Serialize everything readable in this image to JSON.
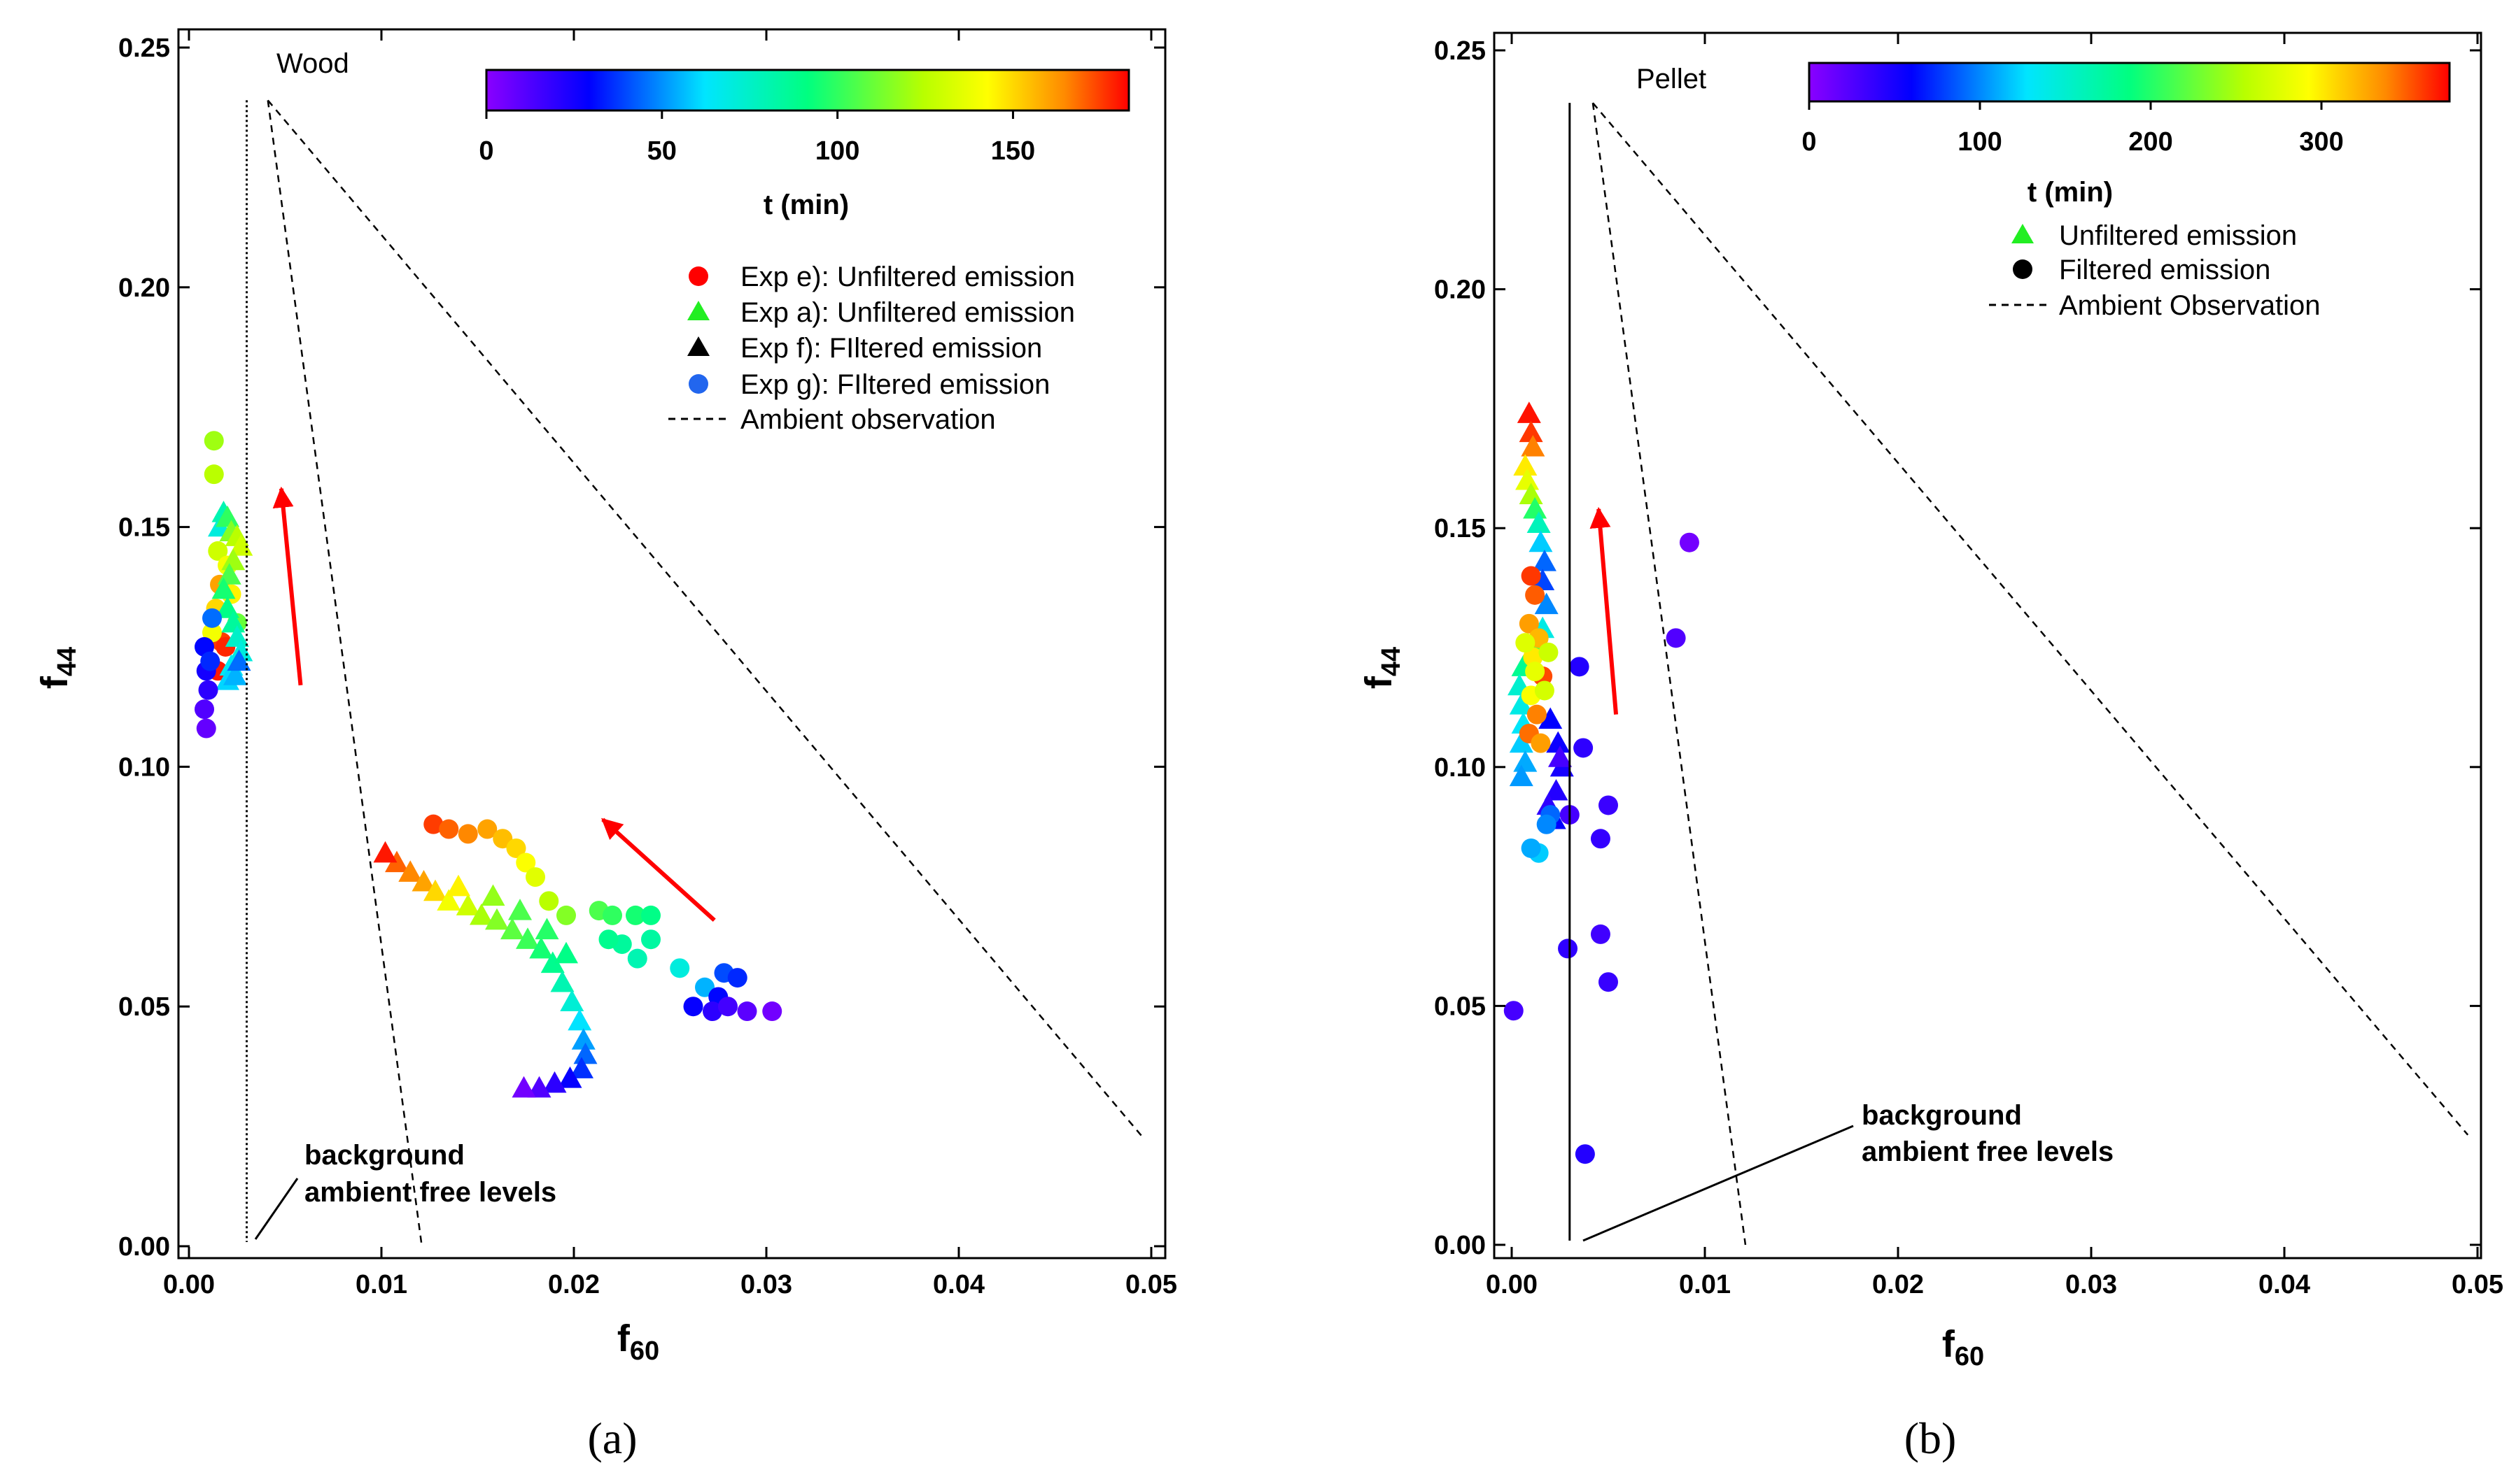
{
  "chart_data": [
    {
      "type": "scatter",
      "panel": "(a)",
      "title": "Wood",
      "xlabel_main": "f",
      "xlabel_sub": "60",
      "ylabel_main": "f",
      "ylabel_sub": "44",
      "xlim": [
        0,
        0.05
      ],
      "ylim": [
        0,
        0.25
      ],
      "xticks": [
        "0.00",
        "0.01",
        "0.02",
        "0.03",
        "0.04",
        "0.05"
      ],
      "yticks": [
        "0.00",
        "0.05",
        "0.10",
        "0.15",
        "0.20",
        "0.25"
      ],
      "colorbar": {
        "label": "t (min)",
        "min": 0,
        "max": 183,
        "ticks": [
          "0",
          "50",
          "100",
          "150"
        ],
        "tick_values": [
          0,
          50,
          100,
          150
        ]
      },
      "legend": [
        {
          "label": "Exp e): Unfiltered emission",
          "marker": "circle",
          "color": "#ff0000"
        },
        {
          "label": "Exp a): Unfiltered emission",
          "marker": "triangle",
          "color": "#22ee22"
        },
        {
          "label": "Exp f): FIltered emission",
          "marker": "triangle",
          "color": "#000000"
        },
        {
          "label": "Exp g): FIltered emission",
          "marker": "circle",
          "color": "#2266ee"
        },
        {
          "label": "Ambient observation",
          "marker": "dashed-line",
          "color": "#000000"
        }
      ],
      "annotation": {
        "line1": "background",
        "line2": "ambient free levels"
      },
      "ambient_lines": [
        [
          [
            0.0041,
            0.239
          ],
          [
            0.0121,
            0.0
          ]
        ],
        [
          [
            0.0041,
            0.239
          ],
          [
            0.0495,
            0.023
          ]
        ]
      ],
      "background_line": {
        "x": 0.003,
        "style": "dotted"
      },
      "arrows": [
        {
          "from": [
            0.0058,
            0.117
          ],
          "to": [
            0.0048,
            0.158
          ]
        },
        {
          "from": [
            0.0273,
            0.068
          ],
          "to": [
            0.0215,
            0.089
          ]
        }
      ],
      "series": [
        {
          "name": "Exp e): Unfiltered emission",
          "marker": "circle",
          "points": [
            [
              0.0013,
              0.168,
              120
            ],
            [
              0.0013,
              0.161,
              125
            ],
            [
              0.0015,
              0.145,
              130
            ],
            [
              0.0016,
              0.138,
              160
            ],
            [
              0.0014,
              0.133,
              150
            ],
            [
              0.0017,
              0.126,
              175
            ],
            [
              0.0019,
              0.125,
              178
            ],
            [
              0.0015,
              0.12,
              180
            ],
            [
              0.002,
              0.142,
              140
            ],
            [
              0.0022,
              0.136,
              145
            ],
            [
              0.0025,
              0.13,
              110
            ],
            [
              0.0012,
              0.128,
              140
            ]
          ]
        },
        {
          "name": "Exp a): Unfiltered emission",
          "marker": "triangle",
          "points": [
            [
              0.0016,
              0.15,
              70
            ],
            [
              0.0018,
              0.153,
              80
            ],
            [
              0.002,
              0.152,
              100
            ],
            [
              0.0022,
              0.149,
              115
            ],
            [
              0.0025,
              0.148,
              125
            ],
            [
              0.0027,
              0.146,
              130
            ],
            [
              0.0023,
              0.143,
              120
            ],
            [
              0.0021,
              0.14,
              105
            ],
            [
              0.0018,
              0.137,
              95
            ],
            [
              0.002,
              0.133,
              90
            ],
            [
              0.0023,
              0.13,
              85
            ],
            [
              0.0025,
              0.127,
              75
            ],
            [
              0.0027,
              0.124,
              70
            ],
            [
              0.0022,
              0.121,
              65
            ],
            [
              0.002,
              0.118,
              60
            ],
            [
              0.0024,
              0.119,
              55
            ],
            [
              0.0026,
              0.122,
              45
            ]
          ]
        },
        {
          "name": "Exp f): FIltered emission",
          "marker": "triangle",
          "points": [
            [
              0.0108,
              0.08,
              170
            ],
            [
              0.0115,
              0.078,
              165
            ],
            [
              0.0122,
              0.076,
              160
            ],
            [
              0.0128,
              0.074,
              150
            ],
            [
              0.0135,
              0.072,
              140
            ],
            [
              0.0145,
              0.071,
              130
            ],
            [
              0.0152,
              0.069,
              122
            ],
            [
              0.016,
              0.068,
              115
            ],
            [
              0.0168,
              0.066,
              108
            ],
            [
              0.0176,
              0.064,
              102
            ],
            [
              0.0183,
              0.062,
              95
            ],
            [
              0.0189,
              0.059,
              88
            ],
            [
              0.0194,
              0.055,
              80
            ],
            [
              0.0199,
              0.051,
              72
            ],
            [
              0.0203,
              0.047,
              62
            ],
            [
              0.0205,
              0.043,
              52
            ],
            [
              0.0206,
              0.04,
              44
            ],
            [
              0.0204,
              0.037,
              36
            ],
            [
              0.0198,
              0.035,
              28
            ],
            [
              0.019,
              0.034,
              20
            ],
            [
              0.0182,
              0.033,
              12
            ],
            [
              0.0174,
              0.033,
              5
            ],
            [
              0.0102,
              0.082,
              180
            ],
            [
              0.014,
              0.075,
              145
            ],
            [
              0.0158,
              0.073,
              118
            ],
            [
              0.0172,
              0.07,
              105
            ],
            [
              0.0186,
              0.066,
              98
            ],
            [
              0.0196,
              0.061,
              90
            ]
          ]
        },
        {
          "name": "Exp g): FIltered emission",
          "marker": "circle",
          "points": [
            [
              0.0127,
              0.088,
              175
            ],
            [
              0.0135,
              0.087,
              170
            ],
            [
              0.0145,
              0.086,
              165
            ],
            [
              0.0155,
              0.087,
              160
            ],
            [
              0.0163,
              0.085,
              155
            ],
            [
              0.017,
              0.083,
              150
            ],
            [
              0.0175,
              0.08,
              142
            ],
            [
              0.018,
              0.077,
              135
            ],
            [
              0.0187,
              0.072,
              125
            ],
            [
              0.0196,
              0.069,
              115
            ],
            [
              0.0213,
              0.07,
              105
            ],
            [
              0.022,
              0.069,
              100
            ],
            [
              0.0232,
              0.069,
              95
            ],
            [
              0.024,
              0.069,
              90
            ],
            [
              0.0225,
              0.063,
              85
            ],
            [
              0.0233,
              0.06,
              80
            ],
            [
              0.0218,
              0.064,
              88
            ],
            [
              0.024,
              0.064,
              84
            ],
            [
              0.0255,
              0.058,
              70
            ],
            [
              0.0268,
              0.054,
              55
            ],
            [
              0.0278,
              0.057,
              40
            ],
            [
              0.0285,
              0.056,
              35
            ],
            [
              0.0275,
              0.052,
              30
            ],
            [
              0.0262,
              0.05,
              28
            ],
            [
              0.0272,
              0.049,
              20
            ],
            [
              0.028,
              0.05,
              15
            ],
            [
              0.029,
              0.049,
              10
            ],
            [
              0.0303,
              0.049,
              5
            ],
            [
              0.0008,
              0.125,
              30
            ],
            [
              0.0009,
              0.12,
              25
            ],
            [
              0.001,
              0.116,
              20
            ],
            [
              0.0008,
              0.112,
              12
            ],
            [
              0.0009,
              0.108,
              8
            ],
            [
              0.0011,
              0.122,
              35
            ],
            [
              0.0012,
              0.131,
              45
            ]
          ]
        }
      ]
    },
    {
      "type": "scatter",
      "panel": "(b)",
      "title": "Pellet",
      "xlabel_main": "f",
      "xlabel_sub": "60",
      "ylabel_main": "f",
      "ylabel_sub": "44",
      "xlim": [
        0,
        0.05
      ],
      "ylim": [
        0,
        0.25
      ],
      "xticks": [
        "0.00",
        "0.01",
        "0.02",
        "0.03",
        "0.04",
        "0.05"
      ],
      "yticks": [
        "0.00",
        "0.05",
        "0.10",
        "0.15",
        "0.20",
        "0.25"
      ],
      "colorbar": {
        "label": "t (min)",
        "min": 0,
        "max": 375,
        "ticks": [
          "0",
          "100",
          "200",
          "300"
        ],
        "tick_values": [
          0,
          100,
          200,
          300
        ]
      },
      "legend": [
        {
          "label": "Unfiltered emission",
          "marker": "triangle",
          "color": "#22ee22"
        },
        {
          "label": "Filtered emission",
          "marker": "circle",
          "color": "#000000"
        },
        {
          "label": "Ambient Observation",
          "marker": "dashed-line",
          "color": "#000000"
        }
      ],
      "annotation": {
        "line1": "background",
        "line2": "ambient free levels"
      },
      "ambient_lines": [
        [
          [
            0.0042,
            0.239
          ],
          [
            0.0121,
            0.0
          ]
        ],
        [
          [
            0.0042,
            0.239
          ],
          [
            0.0495,
            0.023
          ]
        ]
      ],
      "background_line": {
        "x": 0.003,
        "style": "solid"
      },
      "arrows": [
        {
          "from": [
            0.0054,
            0.111
          ],
          "to": [
            0.0045,
            0.154
          ]
        }
      ],
      "series": [
        {
          "name": "Unfiltered emission",
          "marker": "triangle",
          "points": [
            [
              0.0009,
              0.174,
              370
            ],
            [
              0.001,
              0.17,
              360
            ],
            [
              0.0011,
              0.167,
              340
            ],
            [
              0.0007,
              0.163,
              300
            ],
            [
              0.0008,
              0.16,
              280
            ],
            [
              0.001,
              0.157,
              250
            ],
            [
              0.0012,
              0.154,
              200
            ],
            [
              0.0014,
              0.151,
              160
            ],
            [
              0.0015,
              0.147,
              120
            ],
            [
              0.0017,
              0.143,
              90
            ],
            [
              0.0016,
              0.139,
              80
            ],
            [
              0.0018,
              0.134,
              100
            ],
            [
              0.0016,
              0.129,
              140
            ],
            [
              0.0012,
              0.125,
              220
            ],
            [
              0.0006,
              0.121,
              180
            ],
            [
              0.0004,
              0.117,
              150
            ],
            [
              0.0005,
              0.113,
              140
            ],
            [
              0.0006,
              0.109,
              130
            ],
            [
              0.0005,
              0.105,
              120
            ],
            [
              0.0007,
              0.101,
              110
            ],
            [
              0.0005,
              0.098,
              105
            ],
            [
              0.002,
              0.11,
              60
            ],
            [
              0.0024,
              0.105,
              55
            ],
            [
              0.0026,
              0.1,
              50
            ],
            [
              0.0023,
              0.095,
              45
            ],
            [
              0.0019,
              0.092,
              40
            ],
            [
              0.0022,
              0.089,
              60
            ],
            [
              0.0025,
              0.102,
              30
            ]
          ]
        },
        {
          "name": "Filtered emission",
          "marker": "circle",
          "points": [
            [
              0.001,
              0.14,
              360
            ],
            [
              0.0012,
              0.136,
              350
            ],
            [
              0.0009,
              0.13,
              330
            ],
            [
              0.0014,
              0.127,
              320
            ],
            [
              0.0011,
              0.123,
              300
            ],
            [
              0.0016,
              0.119,
              355
            ],
            [
              0.001,
              0.115,
              290
            ],
            [
              0.0013,
              0.111,
              340
            ],
            [
              0.0009,
              0.107,
              345
            ],
            [
              0.0015,
              0.105,
              330
            ],
            [
              0.0012,
              0.12,
              280
            ],
            [
              0.0017,
              0.116,
              270
            ],
            [
              0.0019,
              0.124,
              265
            ],
            [
              0.0007,
              0.126,
              275
            ],
            [
              0.0014,
              0.082,
              120
            ],
            [
              0.001,
              0.083,
              110
            ],
            [
              0.002,
              0.09,
              90
            ],
            [
              0.0018,
              0.088,
              100
            ],
            [
              0.0092,
              0.147,
              10
            ],
            [
              0.0085,
              0.127,
              25
            ],
            [
              0.0035,
              0.121,
              45
            ],
            [
              0.0037,
              0.104,
              40
            ],
            [
              0.005,
              0.092,
              35
            ],
            [
              0.0046,
              0.085,
              38
            ],
            [
              0.003,
              0.09,
              30
            ],
            [
              0.0046,
              0.065,
              32
            ],
            [
              0.005,
              0.055,
              36
            ],
            [
              0.0029,
              0.062,
              40
            ],
            [
              0.0001,
              0.049,
              30
            ],
            [
              0.0038,
              0.019,
              45
            ]
          ]
        }
      ]
    }
  ]
}
